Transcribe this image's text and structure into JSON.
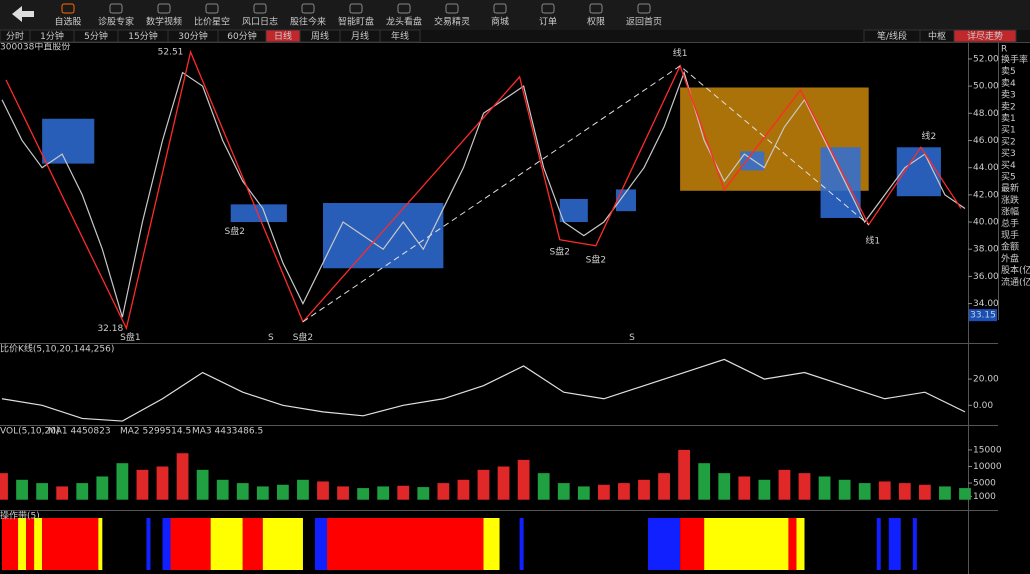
{
  "toolbar": {
    "items": [
      "自选股",
      "诊股专家",
      "数学视频",
      "比价星空",
      "风口日志",
      "股往今来",
      "智能盯盘",
      "龙头看盘",
      "交易精灵",
      "商城",
      "订单",
      "权限",
      "返回首页"
    ],
    "active": 0
  },
  "period_tabs": {
    "items": [
      "分时",
      "1分钟",
      "5分钟",
      "15分钟",
      "30分钟",
      "60分钟",
      "日线",
      "周线",
      "月线",
      "年线"
    ],
    "active": 6
  },
  "side_tabs": {
    "items": [
      "笔/线段",
      "中枢",
      "详尽走势"
    ],
    "active": 2
  },
  "stock_label": "300038中直股份",
  "side_panel": {
    "marker": "R",
    "rows": [
      "换手率",
      "卖5",
      "卖4",
      "卖3",
      "卖2",
      "卖1",
      "买1",
      "买2",
      "买3",
      "买4",
      "买5",
      "最新",
      "涨跌",
      "涨幅",
      "总手",
      "现手",
      "金额",
      "外盘",
      "股本(亿",
      "流通(亿"
    ]
  },
  "chart_data": [
    {
      "type": "line",
      "xlim": [
        0,
        240
      ],
      "ylim": [
        31.1,
        53.1
      ],
      "yticks": [
        {
          "value": 52,
          "label": "52.00"
        },
        {
          "value": 50,
          "label": "50.00"
        },
        {
          "value": 48,
          "label": "48.00"
        },
        {
          "value": 46,
          "label": "46.00"
        },
        {
          "value": 44,
          "label": "44.00"
        },
        {
          "value": 42,
          "label": "42.00"
        },
        {
          "value": 40,
          "label": "40.00"
        },
        {
          "value": 38,
          "label": "38.00"
        },
        {
          "value": 36,
          "label": "36.00"
        },
        {
          "value": 34,
          "label": "34.00"
        }
      ],
      "current_price": 33.15,
      "x": [
        0,
        5,
        10,
        15,
        20,
        25,
        30,
        35,
        40,
        45,
        50,
        55,
        60,
        65,
        70,
        75,
        80,
        85,
        90,
        95,
        100,
        105,
        110,
        115,
        120,
        125,
        130,
        135,
        140,
        145,
        150,
        155,
        160,
        165,
        170,
        175,
        180,
        185,
        190,
        195,
        200,
        205,
        210,
        215,
        220,
        225,
        230,
        235,
        240
      ],
      "values": [
        49,
        46,
        44,
        45,
        42,
        38,
        33,
        40,
        46,
        51,
        50,
        46,
        43,
        41,
        37,
        34,
        37,
        40,
        39,
        38,
        40,
        38,
        41,
        44,
        48,
        49,
        50,
        44,
        40,
        39,
        40,
        42,
        44,
        47,
        51,
        46,
        43,
        45,
        44,
        47,
        49,
        46,
        43,
        40,
        42,
        44,
        45,
        42,
        41
      ],
      "color": "#c8c8c8",
      "zigzag": {
        "x": [
          1,
          31,
          47,
          75,
          129,
          139,
          148,
          169,
          180,
          199,
          216,
          229,
          239
        ],
        "values": [
          50.46,
          32.18,
          52.51,
          32.66,
          50.68,
          38.7,
          38.25,
          51.49,
          42.37,
          49.72,
          39.8,
          45.5,
          41
        ],
        "color": "#ff2a2a"
      },
      "dashed": {
        "x": [
          75,
          169,
          216
        ],
        "values": [
          32.66,
          51.49,
          39.8
        ],
        "color": "#e0e0e0"
      },
      "boxes": [
        {
          "x": [
            10,
            23
          ],
          "y": [
            44.3,
            47.6
          ],
          "color": "#2f6fd8"
        },
        {
          "x": [
            57,
            71
          ],
          "y": [
            40,
            41.3
          ],
          "color": "#2f6fd8"
        },
        {
          "x": [
            80,
            110
          ],
          "y": [
            36.6,
            41.4
          ],
          "color": "#2f6fd8"
        },
        {
          "x": [
            139,
            146
          ],
          "y": [
            40,
            41.7
          ],
          "color": "#2f6fd8"
        },
        {
          "x": [
            153,
            158
          ],
          "y": [
            40.8,
            42.4
          ],
          "color": "#2f6fd8"
        },
        {
          "x": [
            169,
            216
          ],
          "y": [
            42.3,
            49.9
          ],
          "color": "#c8860a"
        },
        {
          "x": [
            184,
            190
          ],
          "y": [
            43.8,
            45.2
          ],
          "color": "#2f6fd8"
        },
        {
          "x": [
            204,
            214
          ],
          "y": [
            40.3,
            45.5
          ],
          "color": "#2f6fd8"
        },
        {
          "x": [
            223,
            234
          ],
          "y": [
            41.9,
            45.5
          ],
          "color": "#2f6fd8"
        }
      ],
      "annotations": [
        {
          "text": "52.51",
          "x": 42,
          "y": 52.51,
          "color": "#dddddd"
        },
        {
          "text": "32.18",
          "x": 27,
          "y": 32.18,
          "color": "#dddddd"
        },
        {
          "text": "S盘1",
          "x": 32,
          "y": 31.5,
          "color": "#ff7030"
        },
        {
          "text": "S盘2",
          "x": 58,
          "y": 39.3,
          "color": "#ff7030"
        },
        {
          "text": "S",
          "x": 67,
          "y": 31.5,
          "color": "#ff3030"
        },
        {
          "text": "S盘2",
          "x": 75,
          "y": 31.5,
          "color": "#ff7030"
        },
        {
          "text": "S盘2",
          "x": 139,
          "y": 37.8,
          "color": "#ff7030"
        },
        {
          "text": "S盘2",
          "x": 148,
          "y": 37.2,
          "color": "#ff7030"
        },
        {
          "text": "S",
          "x": 157,
          "y": 31.5,
          "color": "#ff3030"
        },
        {
          "text": "线1",
          "x": 217,
          "y": 38.6,
          "color": "#ff7030"
        },
        {
          "text": "线1",
          "x": 169,
          "y": 52.4,
          "color": "#4090ff"
        },
        {
          "text": "线2",
          "x": 231,
          "y": 46.3,
          "color": "#4090ff"
        }
      ]
    },
    {
      "type": "line",
      "title": "比价K线(5,10,20,144,256)",
      "xlim": [
        0,
        240
      ],
      "ylim": [
        -15,
        46
      ],
      "yticks": [
        {
          "value": 20,
          "label": "20.00"
        },
        {
          "value": 0,
          "label": "0.00"
        }
      ],
      "x": [
        0,
        10,
        20,
        30,
        40,
        50,
        60,
        70,
        80,
        90,
        100,
        110,
        120,
        130,
        140,
        150,
        160,
        170,
        180,
        190,
        200,
        210,
        220,
        230,
        240
      ],
      "values": [
        5,
        0,
        -10,
        -12,
        5,
        25,
        10,
        0,
        -5,
        -8,
        0,
        5,
        15,
        30,
        10,
        5,
        15,
        25,
        35,
        20,
        25,
        15,
        5,
        10,
        -5
      ],
      "color": "#e0e0e0"
    },
    {
      "type": "bar",
      "title": "VOL(5,10,20)",
      "ma_labels": [
        {
          "text": "MA1 4450823",
          "color": "#ff3030"
        },
        {
          "text": "MA2 5299514.5",
          "color": "#3060ff"
        },
        {
          "text": "MA3 4433486.5",
          "color": "#dddddd"
        }
      ],
      "xlim": [
        0,
        240
      ],
      "ylim": [
        -3100,
        21900
      ],
      "yticks": [
        15000,
        10000,
        5000,
        1000
      ],
      "x": [
        0,
        5,
        10,
        15,
        20,
        25,
        30,
        35,
        40,
        45,
        50,
        55,
        60,
        65,
        70,
        75,
        80,
        85,
        90,
        95,
        100,
        105,
        110,
        115,
        120,
        125,
        130,
        135,
        140,
        145,
        150,
        155,
        160,
        165,
        170,
        175,
        180,
        185,
        190,
        195,
        200,
        205,
        210,
        215,
        220,
        225,
        230,
        235,
        240
      ],
      "values": [
        8000,
        6000,
        5000,
        4000,
        5000,
        7000,
        11000,
        9000,
        10000,
        14000,
        9000,
        6000,
        5000,
        4000,
        4500,
        6000,
        5500,
        4000,
        3500,
        4000,
        4200,
        3800,
        5000,
        6000,
        9000,
        10000,
        12000,
        8000,
        5000,
        4000,
        4500,
        5000,
        6000,
        8000,
        15000,
        11000,
        8000,
        7000,
        6000,
        9000,
        8000,
        7000,
        6000,
        5000,
        5500,
        5000,
        4500,
        4000,
        3500
      ],
      "up_color": "#e02828",
      "down_color": "#20a040"
    },
    {
      "type": "band",
      "title": "操作带(5)",
      "xlim": [
        0,
        240
      ],
      "segments": [
        {
          "x": [
            0,
            4
          ],
          "color": "#ff0000"
        },
        {
          "x": [
            4,
            6
          ],
          "color": "#ffff00"
        },
        {
          "x": [
            6,
            8
          ],
          "color": "#ff0000"
        },
        {
          "x": [
            8,
            10
          ],
          "color": "#ffff00"
        },
        {
          "x": [
            10,
            24
          ],
          "color": "#ff0000"
        },
        {
          "x": [
            24,
            25
          ],
          "color": "#ffff00"
        },
        {
          "x": [
            36,
            37
          ],
          "color": "#1020ff"
        },
        {
          "x": [
            40,
            42
          ],
          "color": "#1020ff"
        },
        {
          "x": [
            42,
            52
          ],
          "color": "#ff0000"
        },
        {
          "x": [
            52,
            60
          ],
          "color": "#ffff00"
        },
        {
          "x": [
            60,
            65
          ],
          "color": "#ff0000"
        },
        {
          "x": [
            65,
            75
          ],
          "color": "#ffff00"
        },
        {
          "x": [
            78,
            81
          ],
          "color": "#1020ff"
        },
        {
          "x": [
            81,
            120
          ],
          "color": "#ff0000"
        },
        {
          "x": [
            120,
            124
          ],
          "color": "#ffff00"
        },
        {
          "x": [
            129,
            130
          ],
          "color": "#1020ff"
        },
        {
          "x": [
            161,
            169
          ],
          "color": "#1020ff"
        },
        {
          "x": [
            169,
            175
          ],
          "color": "#ff0000"
        },
        {
          "x": [
            175,
            196
          ],
          "color": "#ffff00"
        },
        {
          "x": [
            196,
            198
          ],
          "color": "#ff0000"
        },
        {
          "x": [
            198,
            200
          ],
          "color": "#ffff00"
        },
        {
          "x": [
            218,
            219
          ],
          "color": "#1020ff"
        },
        {
          "x": [
            221,
            224
          ],
          "color": "#1020ff"
        },
        {
          "x": [
            227,
            228
          ],
          "color": "#1020ff"
        }
      ]
    }
  ]
}
